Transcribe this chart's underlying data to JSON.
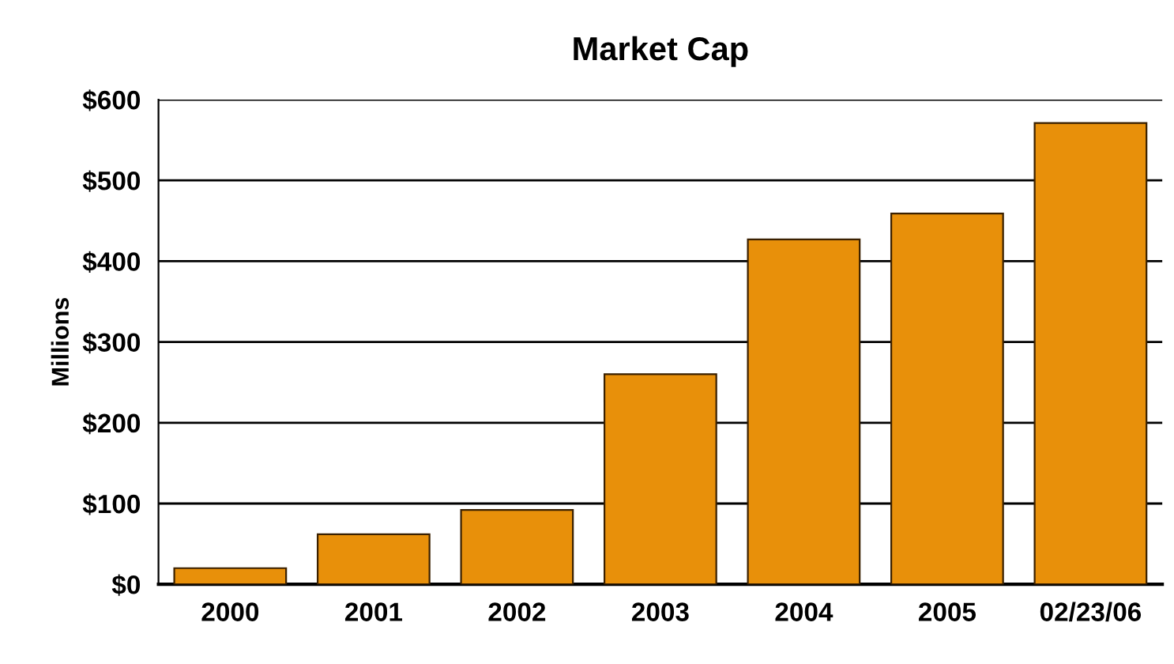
{
  "chart_data": {
    "type": "bar",
    "title": "Market Cap",
    "ylabel": "Millions",
    "categories": [
      "2000",
      "2001",
      "2002",
      "2003",
      "2004",
      "2005",
      "02/23/06"
    ],
    "values": [
      20,
      62,
      92,
      260,
      427,
      459,
      571
    ],
    "color": "#e8900a",
    "ylim": [
      0,
      600
    ],
    "yticks": [
      {
        "value": 0,
        "label": "$0"
      },
      {
        "value": 100,
        "label": "$100"
      },
      {
        "value": 200,
        "label": "$200"
      },
      {
        "value": 300,
        "label": "$300"
      },
      {
        "value": 400,
        "label": "$400"
      },
      {
        "value": 500,
        "label": "$500"
      },
      {
        "value": 600,
        "label": "$600"
      }
    ],
    "grid": "y",
    "legend": false
  }
}
